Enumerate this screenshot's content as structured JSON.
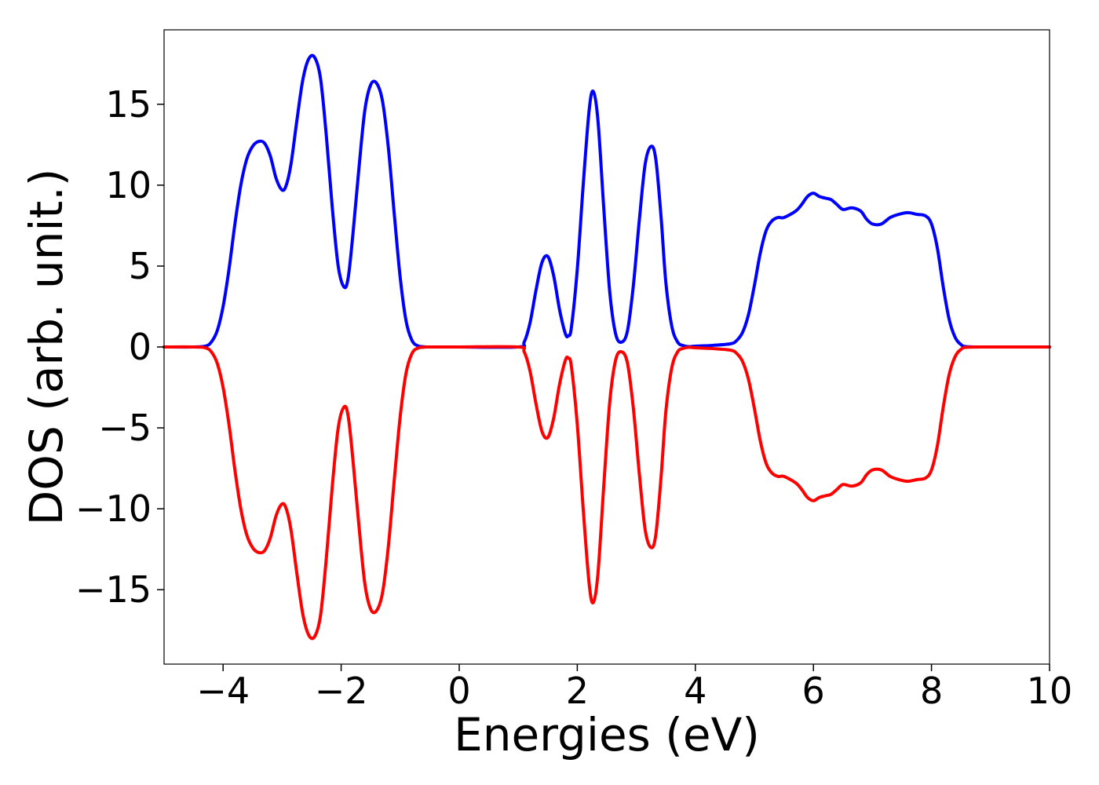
{
  "chart_data": {
    "type": "line",
    "title": "",
    "xlabel": "Energies (eV)",
    "ylabel": "DOS (arb. unit.)",
    "xlim": [
      -5,
      10
    ],
    "ylim": [
      -19.6,
      19.6
    ],
    "xticks": [
      {
        "value": -4,
        "label": "−4"
      },
      {
        "value": -2,
        "label": "−2"
      },
      {
        "value": 0,
        "label": "0"
      },
      {
        "value": 2,
        "label": "2"
      },
      {
        "value": 4,
        "label": "4"
      },
      {
        "value": 6,
        "label": "6"
      },
      {
        "value": 8,
        "label": "8"
      },
      {
        "value": 10,
        "label": "10"
      }
    ],
    "yticks": [
      {
        "value": -15,
        "label": "−15"
      },
      {
        "value": -10,
        "label": "−10"
      },
      {
        "value": -5,
        "label": "−5"
      },
      {
        "value": 0,
        "label": "0"
      },
      {
        "value": 5,
        "label": "5"
      },
      {
        "value": 10,
        "label": "10"
      },
      {
        "value": 15,
        "label": "15"
      }
    ],
    "grid": false,
    "legend": "none",
    "series": [
      {
        "color": "#0000ff",
        "x": [
          -5,
          -4.5,
          -4.3,
          -4.2,
          -4.1,
          -4.0,
          -3.9,
          -3.8,
          -3.7,
          -3.6,
          -3.5,
          -3.4,
          -3.3,
          -3.2,
          -3.1,
          -3.0,
          -2.93,
          -2.85,
          -2.75,
          -2.65,
          -2.55,
          -2.45,
          -2.35,
          -2.25,
          -2.15,
          -2.05,
          -1.95,
          -1.88,
          -1.8,
          -1.7,
          -1.6,
          -1.5,
          -1.4,
          -1.3,
          -1.2,
          -1.1,
          -1.0,
          -0.9,
          -0.8,
          -0.7,
          -0.6,
          -0.5,
          0,
          1.0,
          1.1,
          1.2,
          1.3,
          1.4,
          1.5,
          1.6,
          1.7,
          1.8,
          1.85,
          1.9,
          2.0,
          2.1,
          2.2,
          2.27,
          2.35,
          2.45,
          2.55,
          2.65,
          2.75,
          2.85,
          2.95,
          3.05,
          3.15,
          3.25,
          3.33,
          3.42,
          3.5,
          3.6,
          3.7,
          3.8,
          3.9,
          4.0,
          4.3,
          4.6,
          4.7,
          4.8,
          4.9,
          5.0,
          5.1,
          5.2,
          5.3,
          5.4,
          5.5,
          5.7,
          5.8,
          5.9,
          6.0,
          6.1,
          6.2,
          6.3,
          6.4,
          6.5,
          6.65,
          6.8,
          6.9,
          7.0,
          7.15,
          7.3,
          7.45,
          7.6,
          7.75,
          7.9,
          8.0,
          8.1,
          8.2,
          8.3,
          8.4,
          8.5,
          8.6,
          9.0,
          10.0
        ],
        "y": [
          0,
          0,
          0.05,
          0.3,
          1.0,
          2.5,
          4.8,
          7.6,
          10.0,
          11.6,
          12.4,
          12.7,
          12.6,
          11.8,
          10.4,
          9.7,
          10.0,
          11.3,
          14.0,
          16.5,
          17.8,
          17.9,
          16.6,
          13.0,
          8.6,
          5.0,
          3.7,
          4.3,
          7.0,
          11.0,
          14.6,
          16.2,
          16.3,
          15.2,
          12.3,
          8.2,
          4.3,
          1.6,
          0.4,
          0.07,
          0.01,
          0,
          0,
          0,
          0.3,
          1.5,
          3.5,
          5.2,
          5.6,
          4.4,
          2.3,
          0.8,
          0.7,
          1.2,
          4.8,
          10.0,
          14.6,
          15.8,
          14.0,
          8.5,
          3.4,
          0.8,
          0.3,
          1.0,
          3.8,
          7.8,
          11.3,
          12.4,
          11.6,
          8.0,
          4.0,
          1.3,
          0.3,
          0.08,
          0.02,
          0.05,
          0.1,
          0.2,
          0.4,
          0.9,
          2.0,
          3.8,
          5.8,
          7.2,
          7.8,
          8.0,
          8.0,
          8.4,
          8.8,
          9.3,
          9.5,
          9.3,
          9.2,
          9.1,
          8.8,
          8.5,
          8.6,
          8.4,
          7.9,
          7.6,
          7.6,
          8.0,
          8.2,
          8.3,
          8.2,
          8.1,
          7.6,
          6.1,
          3.7,
          1.7,
          0.6,
          0.15,
          0.02,
          0,
          0
        ]
      },
      {
        "color": "#ff0000",
        "x": [
          -5,
          -4.5,
          -4.3,
          -4.2,
          -4.1,
          -4.0,
          -3.9,
          -3.8,
          -3.7,
          -3.6,
          -3.5,
          -3.4,
          -3.3,
          -3.2,
          -3.1,
          -3.0,
          -2.93,
          -2.85,
          -2.75,
          -2.65,
          -2.55,
          -2.45,
          -2.35,
          -2.25,
          -2.15,
          -2.05,
          -1.95,
          -1.88,
          -1.8,
          -1.7,
          -1.6,
          -1.5,
          -1.4,
          -1.3,
          -1.2,
          -1.1,
          -1.0,
          -0.9,
          -0.8,
          -0.7,
          -0.6,
          -0.5,
          0,
          1.0,
          1.1,
          1.2,
          1.3,
          1.4,
          1.5,
          1.6,
          1.7,
          1.8,
          1.85,
          1.9,
          2.0,
          2.1,
          2.2,
          2.27,
          2.35,
          2.45,
          2.55,
          2.65,
          2.75,
          2.85,
          2.95,
          3.05,
          3.15,
          3.25,
          3.33,
          3.42,
          3.5,
          3.6,
          3.7,
          3.8,
          3.9,
          4.0,
          4.3,
          4.6,
          4.7,
          4.8,
          4.9,
          5.0,
          5.1,
          5.2,
          5.3,
          5.4,
          5.5,
          5.7,
          5.8,
          5.9,
          6.0,
          6.1,
          6.2,
          6.3,
          6.4,
          6.5,
          6.65,
          6.8,
          6.9,
          7.0,
          7.15,
          7.3,
          7.45,
          7.6,
          7.75,
          7.9,
          8.0,
          8.1,
          8.2,
          8.3,
          8.4,
          8.5,
          8.6,
          9.0,
          10.0
        ],
        "y": [
          0,
          0,
          -0.05,
          -0.3,
          -1.0,
          -2.5,
          -4.8,
          -7.6,
          -10.0,
          -11.6,
          -12.4,
          -12.7,
          -12.6,
          -11.8,
          -10.4,
          -9.7,
          -10.0,
          -11.3,
          -14.0,
          -16.5,
          -17.8,
          -17.9,
          -16.6,
          -13.0,
          -8.6,
          -5.0,
          -3.7,
          -4.3,
          -7.0,
          -11.0,
          -14.6,
          -16.2,
          -16.3,
          -15.2,
          -12.3,
          -8.2,
          -4.3,
          -1.6,
          -0.4,
          -0.07,
          -0.01,
          0,
          0,
          0,
          -0.3,
          -1.5,
          -3.5,
          -5.2,
          -5.6,
          -4.4,
          -2.3,
          -0.8,
          -0.7,
          -1.2,
          -4.8,
          -10.0,
          -14.6,
          -15.8,
          -14.0,
          -8.5,
          -3.4,
          -0.8,
          -0.3,
          -1.0,
          -3.8,
          -7.8,
          -11.3,
          -12.4,
          -11.6,
          -8.0,
          -4.0,
          -1.3,
          -0.3,
          -0.08,
          -0.02,
          -0.05,
          -0.1,
          -0.2,
          -0.4,
          -0.9,
          -2.0,
          -3.8,
          -5.8,
          -7.2,
          -7.8,
          -8.0,
          -8.0,
          -8.4,
          -8.8,
          -9.3,
          -9.5,
          -9.3,
          -9.2,
          -9.1,
          -8.8,
          -8.5,
          -8.6,
          -8.4,
          -7.9,
          -7.6,
          -7.6,
          -8.0,
          -8.2,
          -8.3,
          -8.2,
          -8.1,
          -7.6,
          -6.1,
          -3.7,
          -1.7,
          -0.6,
          -0.15,
          -0.02,
          0,
          0
        ]
      }
    ]
  }
}
